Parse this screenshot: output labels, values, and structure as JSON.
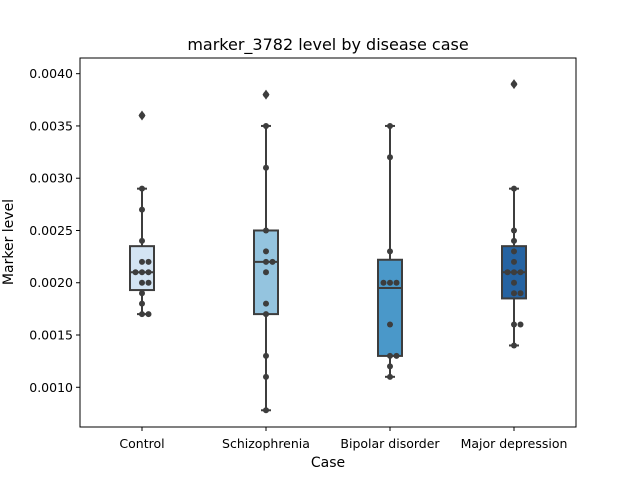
{
  "chart_data": {
    "type": "box",
    "title": "marker_3782 level by disease case",
    "xlabel": "Case",
    "ylabel": "Marker level",
    "ylim": [
      0.00062,
      0.00415
    ],
    "yticks": [
      "0.0010",
      "0.0015",
      "0.0020",
      "0.0025",
      "0.0030",
      "0.0035",
      "0.0040"
    ],
    "grid": false,
    "categories": [
      "Control",
      "Schizophrenia",
      "Bipolar disorder",
      "Major depression"
    ],
    "colors": [
      "#d3e4f3",
      "#94c4df",
      "#4a98c9",
      "#2563a2"
    ],
    "boxes": [
      {
        "q1": 0.00193,
        "median": 0.0021,
        "q3": 0.00235,
        "whisker_low": 0.0017,
        "whisker_high": 0.0029,
        "outliers": [
          0.0036
        ]
      },
      {
        "q1": 0.0017,
        "median": 0.0022,
        "q3": 0.0025,
        "whisker_low": 0.00078,
        "whisker_high": 0.0035,
        "outliers": [
          0.0038
        ]
      },
      {
        "q1": 0.0013,
        "median": 0.00195,
        "q3": 0.00222,
        "whisker_low": 0.0011,
        "whisker_high": 0.0035,
        "outliers": []
      },
      {
        "q1": 0.00185,
        "median": 0.0021,
        "q3": 0.00235,
        "whisker_low": 0.0014,
        "whisker_high": 0.0029,
        "outliers": [
          0.0039
        ]
      }
    ],
    "points": [
      [
        0.0017,
        0.0017,
        0.0018,
        0.0019,
        0.002,
        0.002,
        0.0021,
        0.0021,
        0.0021,
        0.0022,
        0.0022,
        0.0024,
        0.0027,
        0.0029,
        0.0036
      ],
      [
        0.00078,
        0.0011,
        0.0013,
        0.0017,
        0.0018,
        0.0021,
        0.0022,
        0.0022,
        0.0023,
        0.0025,
        0.0031,
        0.0035,
        0.0038
      ],
      [
        0.0011,
        0.0012,
        0.0013,
        0.0013,
        0.0016,
        0.002,
        0.002,
        0.002,
        0.0023,
        0.0032,
        0.0035
      ],
      [
        0.0014,
        0.0016,
        0.0016,
        0.0019,
        0.0019,
        0.002,
        0.0021,
        0.0021,
        0.0021,
        0.0022,
        0.0023,
        0.0024,
        0.0025,
        0.0029,
        0.0039
      ]
    ]
  }
}
